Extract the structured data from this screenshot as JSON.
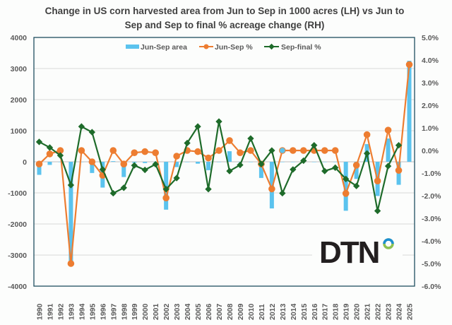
{
  "chart_data": {
    "type": "bar+line",
    "title_lines": [
      "Change in US corn harvested area from Jun to Sep in 1000 acres (LH) vs Jun to",
      "Sep and Sep to final % acreage change (RH)"
    ],
    "categories": [
      "1990",
      "1991",
      "1992",
      "1993",
      "1994",
      "1995",
      "1996",
      "1997",
      "1998",
      "1999",
      "2000",
      "2001",
      "2002",
      "2003",
      "2004",
      "2005",
      "2006",
      "2007",
      "2008",
      "2009",
      "2010",
      "2011",
      "2012",
      "2013",
      "2014",
      "2015",
      "2016",
      "2017",
      "2018",
      "2019",
      "2020",
      "2021",
      "2022",
      "2023",
      "2024",
      "2025"
    ],
    "y_left": {
      "min": -4000,
      "max": 4000,
      "ticks": [
        "-4000",
        "-3000",
        "-2000",
        "-1000",
        "0",
        "1000",
        "2000",
        "3000",
        "4000"
      ]
    },
    "y_right": {
      "min": -6,
      "max": 5,
      "ticks": [
        "-6.0%",
        "-5.0%",
        "-4.0%",
        "-3.0%",
        "-2.0%",
        "-1.0%",
        "0.0%",
        "1.0%",
        "2.0%",
        "3.0%",
        "4.0%",
        "5.0%"
      ]
    },
    "grid": true,
    "legend_position": "top",
    "series": [
      {
        "name": "Jun-Sep area",
        "type": "bar",
        "axis": "left",
        "color": "#5bc3ee",
        "values": [
          -420,
          -100,
          0,
          -3350,
          0,
          -360,
          -830,
          20,
          -490,
          -30,
          -40,
          0,
          -1540,
          -170,
          0,
          -60,
          -270,
          0,
          340,
          0,
          0,
          -520,
          -1500,
          0,
          0,
          0,
          0,
          0,
          0,
          -1575,
          -550,
          570,
          -1100,
          750,
          -740,
          3250
        ]
      },
      {
        "name": "Jun-Sep %",
        "type": "line",
        "axis": "right",
        "color": "#ed7d31",
        "values": [
          -0.6,
          -0.15,
          0.0,
          -5.0,
          0.0,
          -0.5,
          -1.1,
          0.0,
          -0.6,
          -0.1,
          -0.05,
          -0.1,
          -2.1,
          -0.25,
          0.0,
          -0.05,
          -0.33,
          0.0,
          0.44,
          -0.1,
          0.0,
          -0.6,
          -1.7,
          0.0,
          0.0,
          0.0,
          0.0,
          0.0,
          0.0,
          -1.9,
          -0.65,
          0.7,
          -1.35,
          0.9,
          -0.88,
          3.8
        ]
      },
      {
        "name": "Sep-final %",
        "type": "line",
        "axis": "right",
        "color": "#1e6b2a",
        "values": [
          0.38,
          0.13,
          -0.22,
          -1.53,
          1.06,
          0.81,
          -0.84,
          -1.89,
          -1.65,
          -0.66,
          -0.86,
          -0.61,
          -1.71,
          -1.22,
          0.33,
          1.06,
          -1.71,
          1.28,
          -0.91,
          -0.64,
          0.53,
          -0.6,
          0.0,
          -1.89,
          -0.84,
          -0.45,
          0.23,
          -0.91,
          -0.76,
          -1.26,
          -1.57,
          -0.13,
          -2.67,
          -0.69,
          0.23,
          null
        ]
      }
    ]
  },
  "logo": {
    "text": "DTN"
  }
}
